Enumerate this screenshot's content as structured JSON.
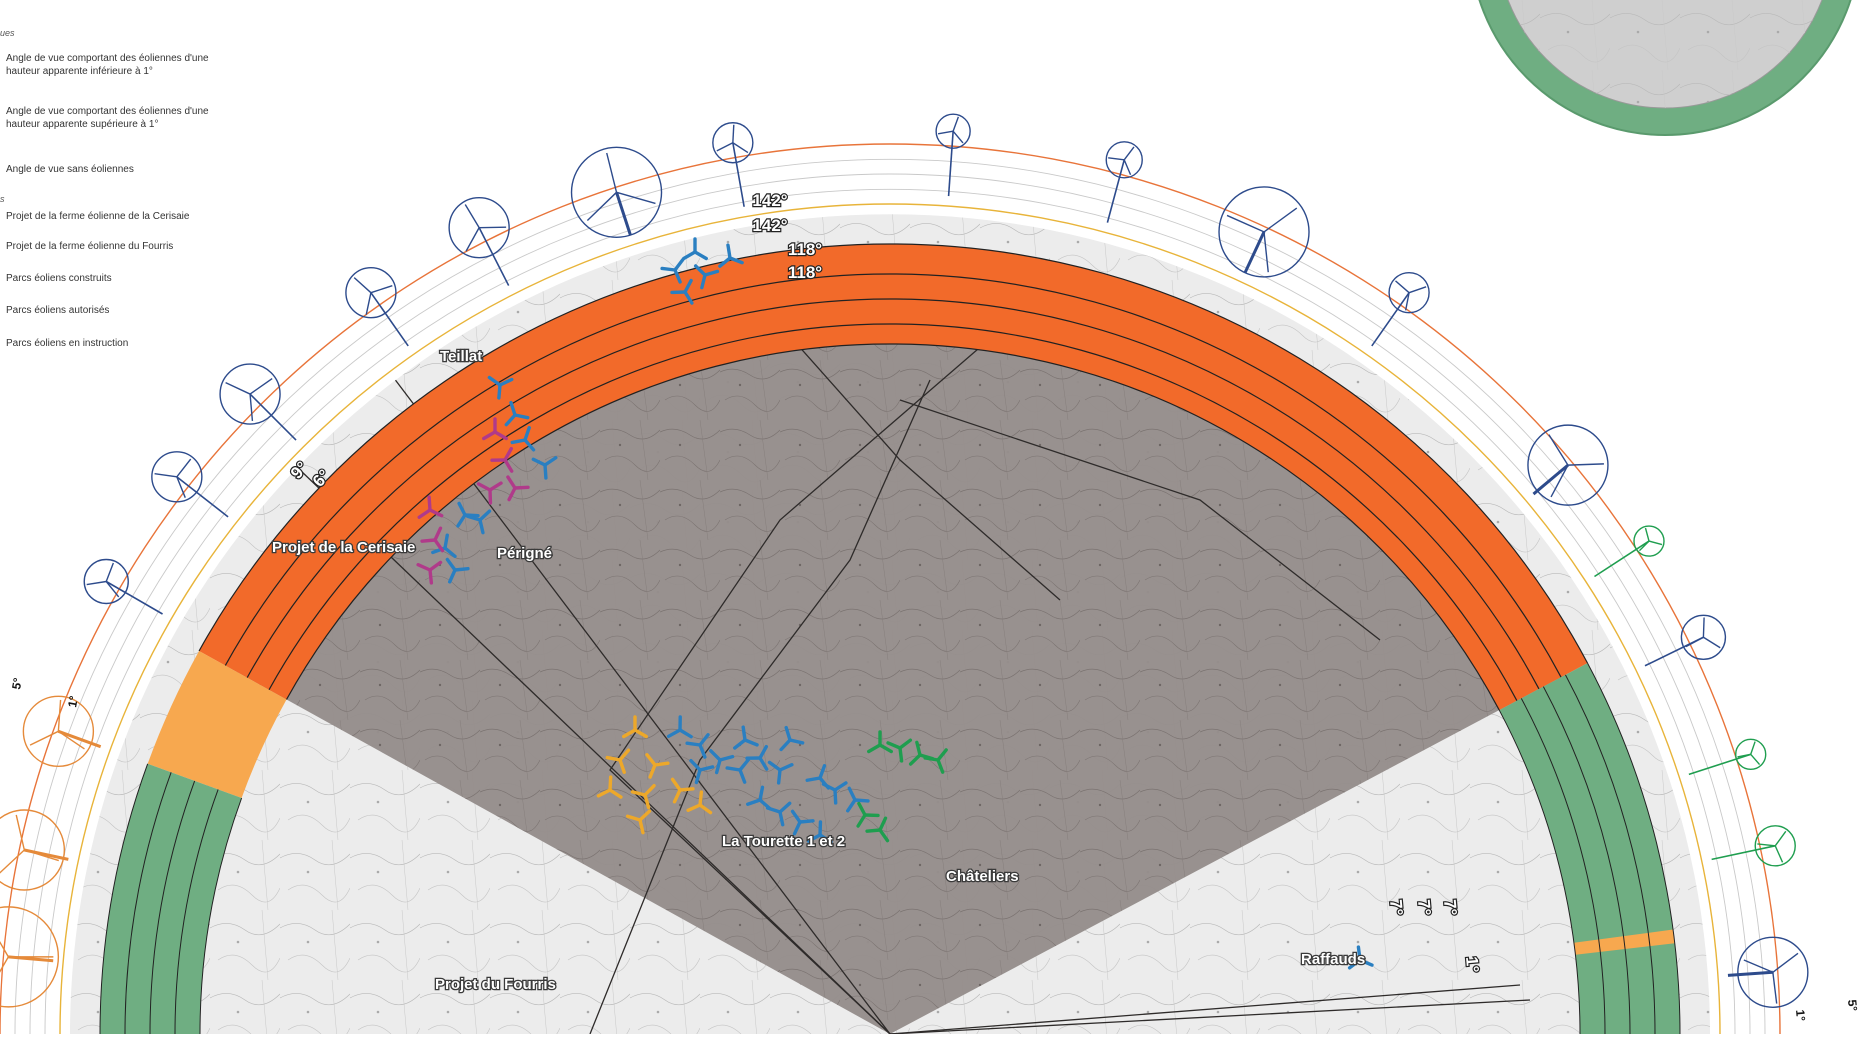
{
  "legend": {
    "section_header": "ues",
    "section_header_2": "s",
    "angle_low": "Angle de vue comportant des éoliennes d'une hauteur apparente inférieure à 1°",
    "angle_high": "Angle de vue comportant des éoliennes d'une hauteur apparente supérieure à 1°",
    "angle_none": "Angle de vue sans éoliennes",
    "projet_cerisaie": "Projet de la ferme éolienne de la Cerisaie",
    "projet_fourris": "Projet de la ferme éolienne du Fourris",
    "parcs_construits": "Parcs éoliens construits",
    "parcs_autorises": "Parcs éoliens autorisés",
    "parcs_instruction": "Parcs éoliens en instruction"
  },
  "places": {
    "teillat": "Teillat",
    "perigne": "Périgné",
    "projet_cerisaie": "Projet de la Cerisaie",
    "projet_fourris": "Projet du Fourris",
    "tourette": "La Tourette 1 et 2",
    "chateliers": "Châteliers",
    "raffauds": "Raffauds"
  },
  "angles": {
    "ring1": "142°",
    "ring2": "142°",
    "ring3": "118°",
    "ring4": "118°",
    "left_a": "9°",
    "left_b": "6°",
    "right_a": "7°",
    "right_b": "7°",
    "right_c": "7°",
    "right_d": "1°"
  },
  "scale": {
    "five_left": "5°",
    "one_left": "1°",
    "five_right": "5°",
    "one_right": "1°"
  },
  "colors": {
    "orange_band": "#f26a2a",
    "orange_light": "#f7a84f",
    "green_band": "#6fae82",
    "map_shade": "#948c8a",
    "built_parks": "#2a7fc1",
    "authorized_parks": "#1f9e4f",
    "pending_parks": "#b03a8a",
    "fourris_project": "#eda82a"
  }
}
